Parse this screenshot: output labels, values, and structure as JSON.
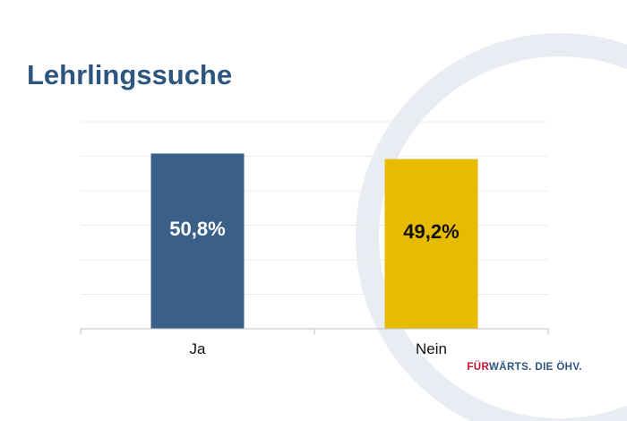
{
  "slide": {
    "title": "Lehrlingssuche",
    "footer_highlight": "FÜR",
    "footer_rest": "WÄRTS. DIE ÖHV.",
    "colors": {
      "title": "#2c5580",
      "footer_highlight": "#c8102e",
      "footer_rest": "#2c5580",
      "watermark": "#e9ecf2"
    }
  },
  "chart_data": {
    "type": "bar",
    "categories": [
      "Ja",
      "Nein"
    ],
    "values": [
      50.8,
      49.2
    ],
    "value_labels": [
      "50,8%",
      "49,2%"
    ],
    "colors": [
      "#3a5f88",
      "#e6bb00"
    ],
    "label_colors": [
      "#ffffff",
      "#111111"
    ],
    "ylim": [
      0,
      60
    ],
    "grid": true,
    "legend": "none"
  }
}
